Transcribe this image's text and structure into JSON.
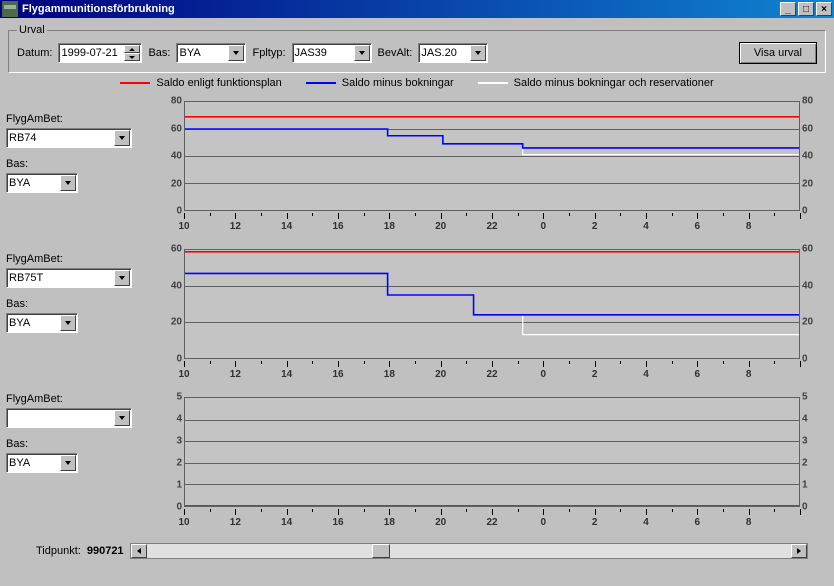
{
  "window": {
    "title": "Flygammunitionsförbrukning"
  },
  "urval": {
    "legend": "Urval",
    "datum_label": "Datum:",
    "datum_value": "1999-07-21",
    "bas_label": "Bas:",
    "bas_value": "BYA",
    "fpltyp_label": "Fpltyp:",
    "fpltyp_value": "JAS39",
    "bevalt_label": "BevAlt:",
    "bevalt_value": "JAS.20",
    "visa_btn": "Visa urval"
  },
  "legend": {
    "items": [
      {
        "color": "#ff0000",
        "label": "Saldo enligt funktionsplan"
      },
      {
        "color": "#0000ff",
        "label": "Saldo minus bokningar"
      },
      {
        "color": "#ffffff",
        "label": "Saldo minus bokningar och reservationer"
      }
    ]
  },
  "side": {
    "flygambet_label": "FlygAmBet:",
    "bas_label": "Bas:",
    "panels": [
      {
        "flygambet": "RB74",
        "bas": "BYA"
      },
      {
        "flygambet": "RB75T",
        "bas": "BYA"
      },
      {
        "flygambet": "",
        "bas": "BYA"
      }
    ]
  },
  "xaxis": {
    "hours": [
      "10",
      "12",
      "14",
      "16",
      "18",
      "20",
      "22",
      "0",
      "2",
      "4",
      "6",
      "8"
    ]
  },
  "charts": [
    {
      "ylim": [
        0,
        80
      ],
      "ystep": 20,
      "series": {
        "red": {
          "color": "#ff0000",
          "points": [
            [
              0,
              69
            ],
            [
              100,
              69
            ]
          ]
        },
        "blue": {
          "color": "#0000ff",
          "points": [
            [
              0,
              60
            ],
            [
              33,
              60
            ],
            [
              33,
              55
            ],
            [
              42,
              55
            ],
            [
              42,
              49
            ],
            [
              55,
              49
            ],
            [
              55,
              46
            ],
            [
              100,
              46
            ]
          ]
        },
        "white": {
          "color": "#ffffff",
          "points": [
            [
              0,
              60
            ],
            [
              33,
              60
            ],
            [
              33,
              55
            ],
            [
              42,
              55
            ],
            [
              42,
              49
            ],
            [
              55,
              49
            ],
            [
              55,
              41
            ],
            [
              100,
              41
            ]
          ]
        }
      }
    },
    {
      "ylim": [
        0,
        60
      ],
      "ystep": 20,
      "series": {
        "red": {
          "color": "#ff0000",
          "points": [
            [
              0,
              59
            ],
            [
              100,
              59
            ]
          ]
        },
        "blue": {
          "color": "#0000ff",
          "points": [
            [
              0,
              47
            ],
            [
              33,
              47
            ],
            [
              33,
              35
            ],
            [
              47,
              35
            ],
            [
              47,
              24
            ],
            [
              100,
              24
            ]
          ]
        },
        "white": {
          "color": "#ffffff",
          "points": [
            [
              0,
              47
            ],
            [
              33,
              47
            ],
            [
              33,
              35
            ],
            [
              47,
              35
            ],
            [
              47,
              24
            ],
            [
              55,
              24
            ],
            [
              55,
              13
            ],
            [
              100,
              13
            ]
          ]
        }
      }
    },
    {
      "ylim": [
        0,
        5
      ],
      "ystep": 1,
      "series": {
        "red": {
          "color": "#ff0000",
          "points": [
            [
              0,
              0
            ],
            [
              100,
              0
            ]
          ]
        },
        "blue": {
          "color": "#0000ff",
          "points": [
            [
              0,
              0
            ],
            [
              100,
              0
            ]
          ]
        },
        "white": {
          "color": "#ffffff",
          "points": [
            [
              0,
              0
            ],
            [
              100,
              0
            ]
          ]
        }
      }
    }
  ],
  "time": {
    "label": "Tidpunkt:",
    "value": "990721",
    "thumb_pct": 35
  },
  "styling": {
    "background": "#c0c0c0",
    "plot_bg": "#c4c4c4",
    "grid_color": "#606060",
    "axis_font_size": 10
  }
}
